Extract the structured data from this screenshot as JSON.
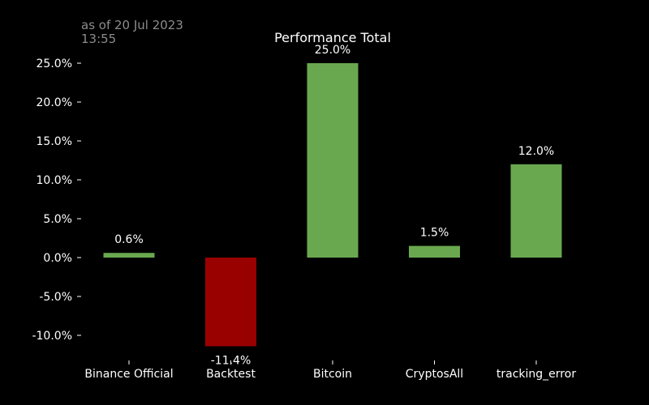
{
  "timestamp": {
    "line1": "as of 20 Jul 2023",
    "line2": "13:55"
  },
  "colors": {
    "background": "#000000",
    "positive": "#6aa84f",
    "negative": "#990000",
    "text": "#ffffff",
    "timestamp": "#8c8c8c"
  },
  "chart_data": {
    "type": "bar",
    "title": "Performance Total",
    "xlabel": "",
    "ylabel": "",
    "categories": [
      "Binance Official",
      "Backtest",
      "Bitcoin",
      "CryptosAll",
      "tracking_error"
    ],
    "values": [
      0.6,
      -11.4,
      25.0,
      1.5,
      12.0
    ],
    "value_labels": [
      "0.6%",
      "-11.4%",
      "25.0%",
      "1.5%",
      "12.0%"
    ],
    "ylim": [
      -12.0,
      25.0
    ],
    "yticks": [
      25.0,
      20.0,
      15.0,
      10.0,
      5.0,
      0.0,
      -5.0,
      -10.0
    ],
    "ytick_labels": [
      "25.0%",
      "20.0%",
      "15.0%",
      "10.0%",
      "5.0%",
      "0.0%",
      "-5.0%",
      "-10.0%"
    ],
    "grid": false,
    "legend": "none"
  }
}
